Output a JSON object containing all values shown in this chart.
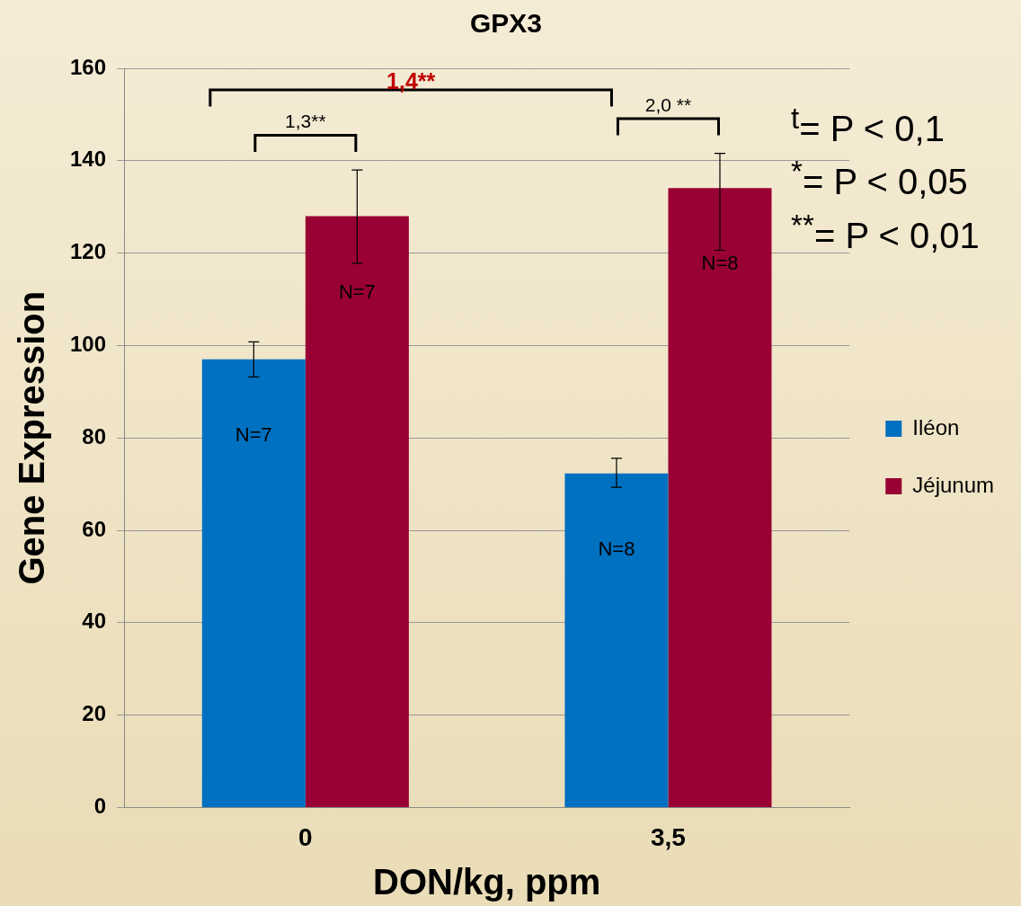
{
  "chart_data": {
    "type": "bar",
    "title": "GPX3",
    "xlabel": "DON/kg, ppm",
    "ylabel": "Gene Expression",
    "categories": [
      "0",
      "3,5"
    ],
    "series": [
      {
        "name": "Iléon",
        "color": "#0070c0",
        "values": [
          97,
          72.3
        ],
        "errors": [
          [
            93.2,
            100.8
          ],
          [
            69.3,
            75.6
          ]
        ]
      },
      {
        "name": "Jéjunum",
        "color": "#990033",
        "values": [
          128,
          134.1
        ],
        "errors": [
          [
            117.8,
            138
          ],
          [
            120.6,
            141.6
          ]
        ]
      }
    ],
    "ylim": [
      0,
      160
    ],
    "yticks": [
      0,
      20,
      40,
      60,
      80,
      100,
      120,
      140,
      160
    ],
    "grid": "y",
    "legend": "right",
    "annotations": [
      "N=7",
      "N=8",
      "N=7",
      "N=8",
      "1,3**",
      "2,0 **",
      "1,4**",
      "$^{t}$= P < 0,1",
      "$^{*}$= P < 0,05",
      "$^{**}$= P < 0,01"
    ]
  }
}
